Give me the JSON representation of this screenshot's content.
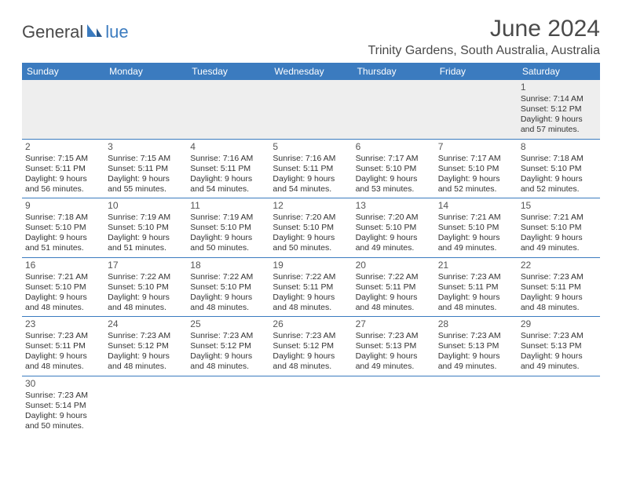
{
  "logo": {
    "text1": "General",
    "text2": "lue"
  },
  "title": "June 2024",
  "location": "Trinity Gardens, South Australia, Australia",
  "colors": {
    "header_bg": "#3b7bbf",
    "header_fg": "#ffffff",
    "border": "#3b7bbf",
    "empty_bg": "#eeeeee"
  },
  "day_headers": [
    "Sunday",
    "Monday",
    "Tuesday",
    "Wednesday",
    "Thursday",
    "Friday",
    "Saturday"
  ],
  "weeks": [
    [
      null,
      null,
      null,
      null,
      null,
      null,
      {
        "n": "1",
        "sr": "Sunrise: 7:14 AM",
        "ss": "Sunset: 5:12 PM",
        "d1": "Daylight: 9 hours",
        "d2": "and 57 minutes."
      }
    ],
    [
      {
        "n": "2",
        "sr": "Sunrise: 7:15 AM",
        "ss": "Sunset: 5:11 PM",
        "d1": "Daylight: 9 hours",
        "d2": "and 56 minutes."
      },
      {
        "n": "3",
        "sr": "Sunrise: 7:15 AM",
        "ss": "Sunset: 5:11 PM",
        "d1": "Daylight: 9 hours",
        "d2": "and 55 minutes."
      },
      {
        "n": "4",
        "sr": "Sunrise: 7:16 AM",
        "ss": "Sunset: 5:11 PM",
        "d1": "Daylight: 9 hours",
        "d2": "and 54 minutes."
      },
      {
        "n": "5",
        "sr": "Sunrise: 7:16 AM",
        "ss": "Sunset: 5:11 PM",
        "d1": "Daylight: 9 hours",
        "d2": "and 54 minutes."
      },
      {
        "n": "6",
        "sr": "Sunrise: 7:17 AM",
        "ss": "Sunset: 5:10 PM",
        "d1": "Daylight: 9 hours",
        "d2": "and 53 minutes."
      },
      {
        "n": "7",
        "sr": "Sunrise: 7:17 AM",
        "ss": "Sunset: 5:10 PM",
        "d1": "Daylight: 9 hours",
        "d2": "and 52 minutes."
      },
      {
        "n": "8",
        "sr": "Sunrise: 7:18 AM",
        "ss": "Sunset: 5:10 PM",
        "d1": "Daylight: 9 hours",
        "d2": "and 52 minutes."
      }
    ],
    [
      {
        "n": "9",
        "sr": "Sunrise: 7:18 AM",
        "ss": "Sunset: 5:10 PM",
        "d1": "Daylight: 9 hours",
        "d2": "and 51 minutes."
      },
      {
        "n": "10",
        "sr": "Sunrise: 7:19 AM",
        "ss": "Sunset: 5:10 PM",
        "d1": "Daylight: 9 hours",
        "d2": "and 51 minutes."
      },
      {
        "n": "11",
        "sr": "Sunrise: 7:19 AM",
        "ss": "Sunset: 5:10 PM",
        "d1": "Daylight: 9 hours",
        "d2": "and 50 minutes."
      },
      {
        "n": "12",
        "sr": "Sunrise: 7:20 AM",
        "ss": "Sunset: 5:10 PM",
        "d1": "Daylight: 9 hours",
        "d2": "and 50 minutes."
      },
      {
        "n": "13",
        "sr": "Sunrise: 7:20 AM",
        "ss": "Sunset: 5:10 PM",
        "d1": "Daylight: 9 hours",
        "d2": "and 49 minutes."
      },
      {
        "n": "14",
        "sr": "Sunrise: 7:21 AM",
        "ss": "Sunset: 5:10 PM",
        "d1": "Daylight: 9 hours",
        "d2": "and 49 minutes."
      },
      {
        "n": "15",
        "sr": "Sunrise: 7:21 AM",
        "ss": "Sunset: 5:10 PM",
        "d1": "Daylight: 9 hours",
        "d2": "and 49 minutes."
      }
    ],
    [
      {
        "n": "16",
        "sr": "Sunrise: 7:21 AM",
        "ss": "Sunset: 5:10 PM",
        "d1": "Daylight: 9 hours",
        "d2": "and 48 minutes."
      },
      {
        "n": "17",
        "sr": "Sunrise: 7:22 AM",
        "ss": "Sunset: 5:10 PM",
        "d1": "Daylight: 9 hours",
        "d2": "and 48 minutes."
      },
      {
        "n": "18",
        "sr": "Sunrise: 7:22 AM",
        "ss": "Sunset: 5:10 PM",
        "d1": "Daylight: 9 hours",
        "d2": "and 48 minutes."
      },
      {
        "n": "19",
        "sr": "Sunrise: 7:22 AM",
        "ss": "Sunset: 5:11 PM",
        "d1": "Daylight: 9 hours",
        "d2": "and 48 minutes."
      },
      {
        "n": "20",
        "sr": "Sunrise: 7:22 AM",
        "ss": "Sunset: 5:11 PM",
        "d1": "Daylight: 9 hours",
        "d2": "and 48 minutes."
      },
      {
        "n": "21",
        "sr": "Sunrise: 7:23 AM",
        "ss": "Sunset: 5:11 PM",
        "d1": "Daylight: 9 hours",
        "d2": "and 48 minutes."
      },
      {
        "n": "22",
        "sr": "Sunrise: 7:23 AM",
        "ss": "Sunset: 5:11 PM",
        "d1": "Daylight: 9 hours",
        "d2": "and 48 minutes."
      }
    ],
    [
      {
        "n": "23",
        "sr": "Sunrise: 7:23 AM",
        "ss": "Sunset: 5:11 PM",
        "d1": "Daylight: 9 hours",
        "d2": "and 48 minutes."
      },
      {
        "n": "24",
        "sr": "Sunrise: 7:23 AM",
        "ss": "Sunset: 5:12 PM",
        "d1": "Daylight: 9 hours",
        "d2": "and 48 minutes."
      },
      {
        "n": "25",
        "sr": "Sunrise: 7:23 AM",
        "ss": "Sunset: 5:12 PM",
        "d1": "Daylight: 9 hours",
        "d2": "and 48 minutes."
      },
      {
        "n": "26",
        "sr": "Sunrise: 7:23 AM",
        "ss": "Sunset: 5:12 PM",
        "d1": "Daylight: 9 hours",
        "d2": "and 48 minutes."
      },
      {
        "n": "27",
        "sr": "Sunrise: 7:23 AM",
        "ss": "Sunset: 5:13 PM",
        "d1": "Daylight: 9 hours",
        "d2": "and 49 minutes."
      },
      {
        "n": "28",
        "sr": "Sunrise: 7:23 AM",
        "ss": "Sunset: 5:13 PM",
        "d1": "Daylight: 9 hours",
        "d2": "and 49 minutes."
      },
      {
        "n": "29",
        "sr": "Sunrise: 7:23 AM",
        "ss": "Sunset: 5:13 PM",
        "d1": "Daylight: 9 hours",
        "d2": "and 49 minutes."
      }
    ],
    [
      {
        "n": "30",
        "sr": "Sunrise: 7:23 AM",
        "ss": "Sunset: 5:14 PM",
        "d1": "Daylight: 9 hours",
        "d2": "and 50 minutes."
      },
      null,
      null,
      null,
      null,
      null,
      null
    ]
  ]
}
